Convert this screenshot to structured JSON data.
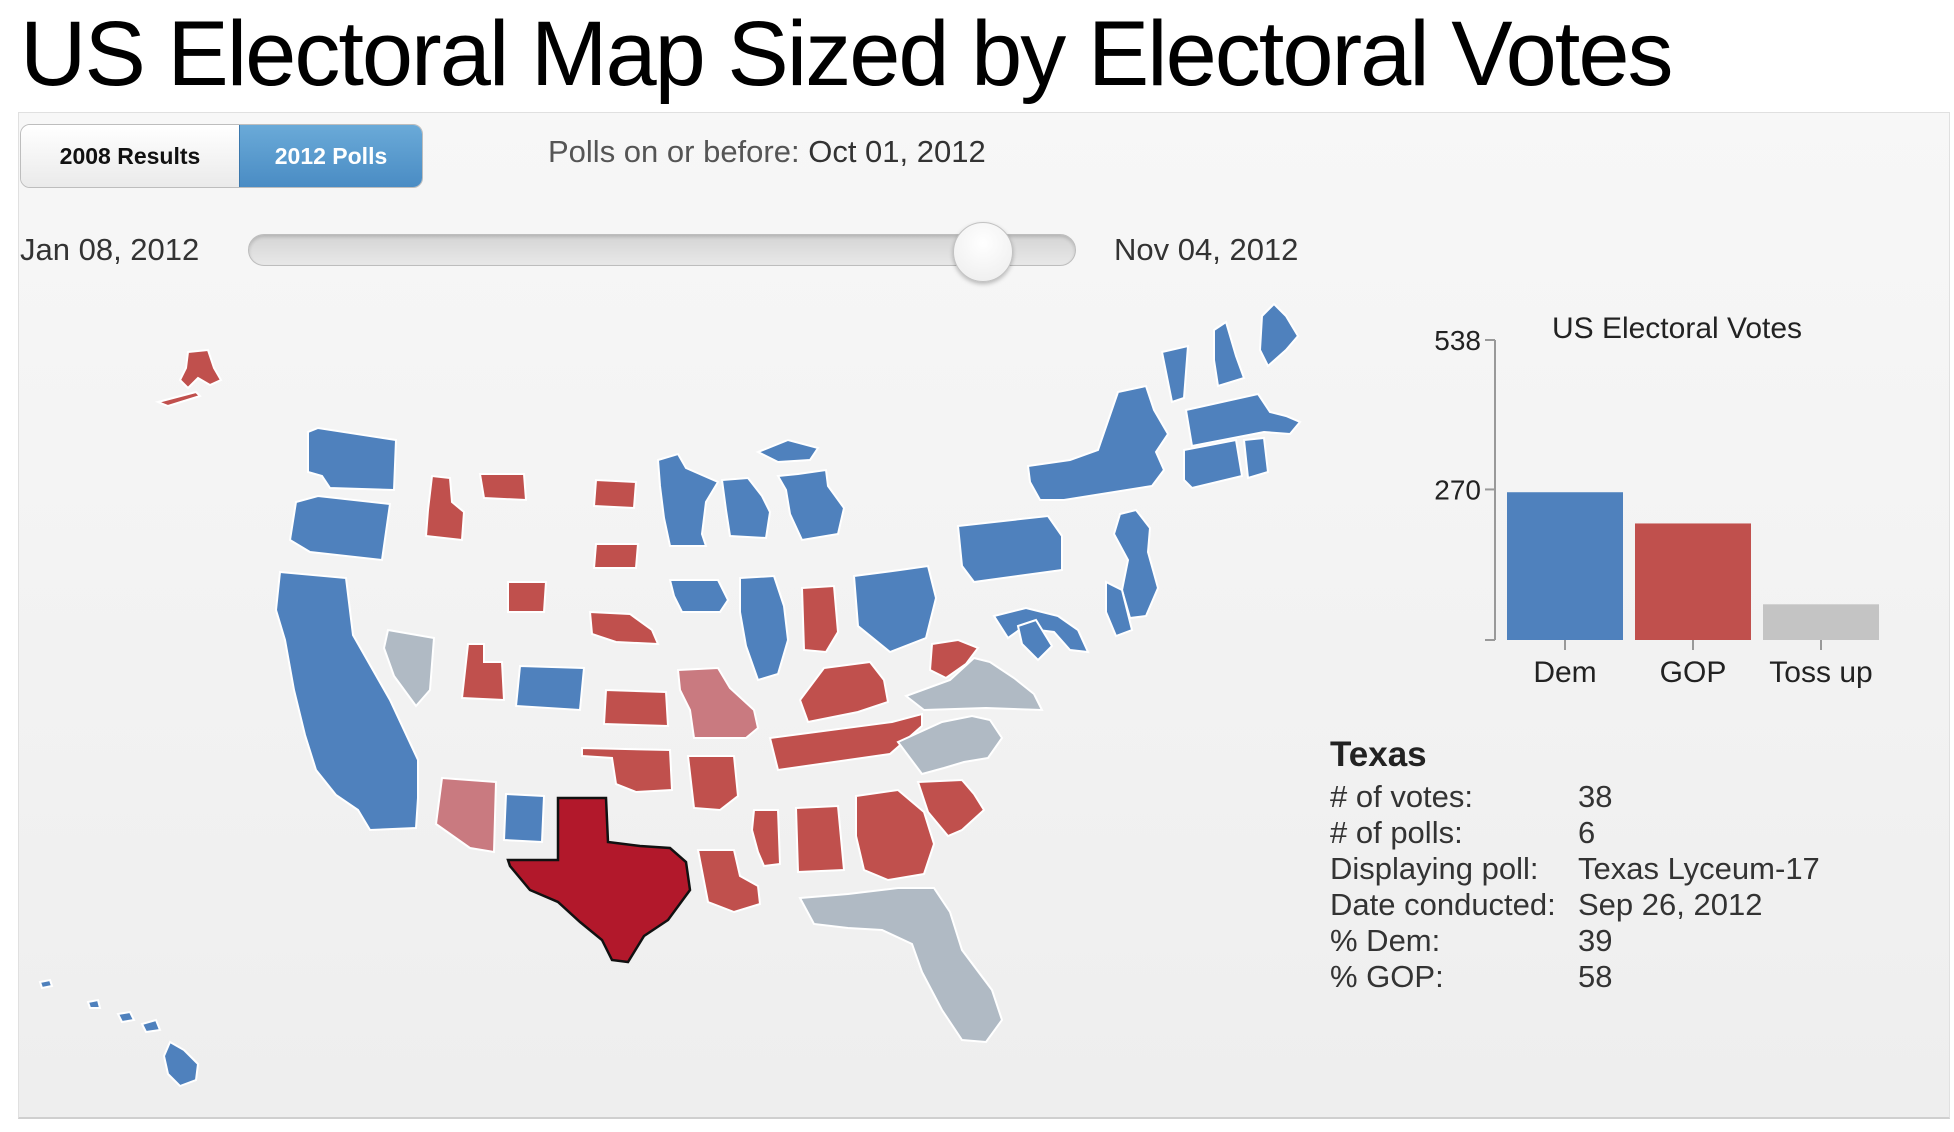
{
  "page": {
    "title": "US Electoral Map Sized by Electoral Votes"
  },
  "toolbar": {
    "btn_2008": "2008 Results",
    "btn_2012": "2012 Polls",
    "active": "2012 Polls",
    "polls_prefix": "Polls on or before:",
    "polls_date": "Oct 01, 2012"
  },
  "slider": {
    "start_label": "Jan 08, 2012",
    "end_label": "Nov 04, 2012",
    "current_date": "Oct 01, 2012"
  },
  "colors": {
    "dem": "#4f81bd",
    "gop": "#c0504d",
    "gop_light": "#c97a80",
    "dem_light": "#5b8cc6",
    "tossup": "#b0bac4",
    "selected": "#b2182b"
  },
  "map": {
    "selected_state": "Texas",
    "states": [
      {
        "name": "Washington",
        "lean": "dem"
      },
      {
        "name": "Oregon",
        "lean": "dem"
      },
      {
        "name": "California",
        "lean": "dem"
      },
      {
        "name": "Nevada",
        "lean": "tossup"
      },
      {
        "name": "Idaho",
        "lean": "gop"
      },
      {
        "name": "Montana",
        "lean": "gop"
      },
      {
        "name": "Wyoming",
        "lean": "gop"
      },
      {
        "name": "Utah",
        "lean": "gop"
      },
      {
        "name": "Colorado",
        "lean": "dem"
      },
      {
        "name": "Arizona",
        "lean": "gop_light"
      },
      {
        "name": "New Mexico",
        "lean": "dem"
      },
      {
        "name": "North Dakota",
        "lean": "gop"
      },
      {
        "name": "South Dakota",
        "lean": "gop"
      },
      {
        "name": "Nebraska",
        "lean": "gop"
      },
      {
        "name": "Kansas",
        "lean": "gop"
      },
      {
        "name": "Oklahoma",
        "lean": "gop"
      },
      {
        "name": "Texas",
        "lean": "selected"
      },
      {
        "name": "Minnesota",
        "lean": "dem"
      },
      {
        "name": "Iowa",
        "lean": "dem"
      },
      {
        "name": "Missouri",
        "lean": "gop_light"
      },
      {
        "name": "Arkansas",
        "lean": "gop"
      },
      {
        "name": "Louisiana",
        "lean": "gop"
      },
      {
        "name": "Wisconsin",
        "lean": "dem"
      },
      {
        "name": "Illinois",
        "lean": "dem"
      },
      {
        "name": "Michigan",
        "lean": "dem"
      },
      {
        "name": "Indiana",
        "lean": "gop"
      },
      {
        "name": "Ohio",
        "lean": "dem"
      },
      {
        "name": "Kentucky",
        "lean": "gop"
      },
      {
        "name": "Tennessee",
        "lean": "gop"
      },
      {
        "name": "Mississippi",
        "lean": "gop"
      },
      {
        "name": "Alabama",
        "lean": "gop"
      },
      {
        "name": "Georgia",
        "lean": "gop"
      },
      {
        "name": "Florida",
        "lean": "tossup"
      },
      {
        "name": "South Carolina",
        "lean": "gop"
      },
      {
        "name": "North Carolina",
        "lean": "tossup"
      },
      {
        "name": "Virginia",
        "lean": "tossup"
      },
      {
        "name": "West Virginia",
        "lean": "gop"
      },
      {
        "name": "Pennsylvania",
        "lean": "dem"
      },
      {
        "name": "New York",
        "lean": "dem"
      },
      {
        "name": "New Jersey",
        "lean": "dem"
      },
      {
        "name": "Delaware",
        "lean": "dem"
      },
      {
        "name": "Maryland",
        "lean": "dem"
      },
      {
        "name": "Connecticut",
        "lean": "dem"
      },
      {
        "name": "Rhode Island",
        "lean": "dem"
      },
      {
        "name": "Massachusetts",
        "lean": "dem"
      },
      {
        "name": "Vermont",
        "lean": "dem"
      },
      {
        "name": "New Hampshire",
        "lean": "dem"
      },
      {
        "name": "Maine",
        "lean": "dem"
      },
      {
        "name": "Alaska",
        "lean": "gop"
      },
      {
        "name": "Hawaii",
        "lean": "dem"
      }
    ]
  },
  "chart_data": {
    "type": "bar",
    "title": "US Electoral Votes",
    "categories": [
      "Dem",
      "GOP",
      "Toss up"
    ],
    "values": [
      265,
      209,
      64
    ],
    "ylim": [
      0,
      538
    ],
    "yticks": [
      538,
      270
    ],
    "colors": [
      "#4f81bd",
      "#c0504d",
      "#c4c4c4"
    ]
  },
  "info": {
    "state": "Texas",
    "rows": [
      {
        "label": "# of votes:",
        "value": "38"
      },
      {
        "label": "# of polls:",
        "value": "6"
      },
      {
        "label": "Displaying poll:",
        "value": "Texas Lyceum-17"
      },
      {
        "label": "Date conducted:",
        "value": "Sep 26, 2012"
      },
      {
        "label": "% Dem:",
        "value": "39"
      },
      {
        "label": "% GOP:",
        "value": "58"
      }
    ]
  }
}
